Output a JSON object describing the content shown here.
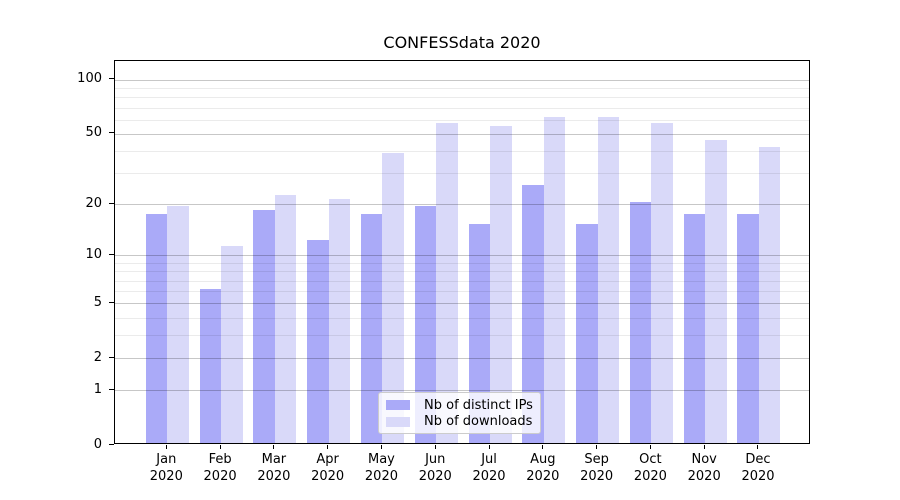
{
  "title": "CONFESSdata 2020",
  "chart_data": {
    "type": "bar",
    "title": "CONFESSdata 2020",
    "categories": [
      "Jan",
      "Feb",
      "Mar",
      "Apr",
      "May",
      "Jun",
      "Jul",
      "Aug",
      "Sep",
      "Oct",
      "Nov",
      "Dec"
    ],
    "category_year": "2020",
    "series": [
      {
        "name": "Nb of distinct IPs",
        "color": "#aaaaf8",
        "values": [
          17,
          6,
          18,
          12,
          17,
          19,
          15,
          25,
          15,
          20,
          17,
          17
        ]
      },
      {
        "name": "Nb of downloads",
        "color": "#d9d9f9",
        "values": [
          19,
          11,
          22,
          21,
          38,
          56,
          54,
          61,
          61,
          56,
          45,
          41
        ]
      }
    ],
    "xlabel": "",
    "ylabel": "",
    "y_scale": "symlog-log1p",
    "ylim": [
      0,
      127
    ],
    "y_ticks": [
      0,
      1,
      2,
      5,
      10,
      20,
      50,
      100
    ],
    "y_tick_labels": [
      "0",
      "1",
      "2",
      "5",
      "10",
      "20",
      "50",
      "100"
    ],
    "y_minor_ticks": [
      3,
      4,
      6,
      7,
      8,
      9,
      30,
      40,
      60,
      70,
      80,
      90
    ],
    "grid": "horizontal major+minor, drawn over bars",
    "legend_position": "lower center"
  },
  "colors": {
    "bar_distinct_ips": "#aaaaf8",
    "bar_downloads": "#d9d9f9",
    "grid_major": "#c8c8c8",
    "grid_minor": "#ececec",
    "spine": "#000000",
    "text": "#000000",
    "legend_border": "#cccccc",
    "legend_background": "rgba(255,255,255,0.8)"
  }
}
